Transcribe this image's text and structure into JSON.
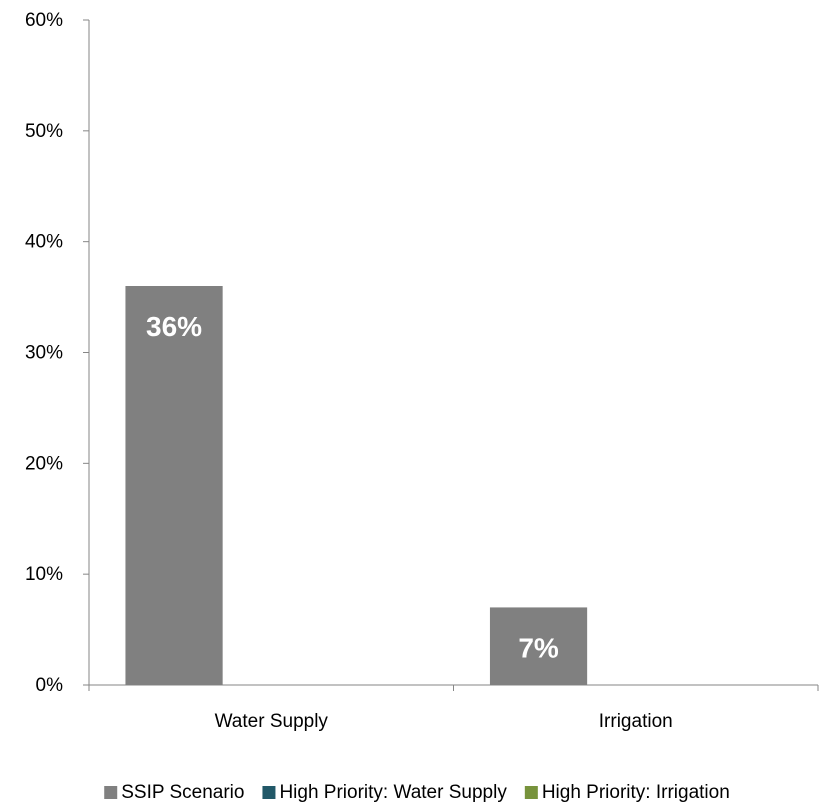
{
  "chart_data": {
    "type": "bar",
    "categories": [
      "Water Supply",
      "Irrigation"
    ],
    "series": [
      {
        "name": "SSIP Scenario",
        "values": [
          36,
          7
        ],
        "color": "#808080"
      },
      {
        "name": "High Priority: Water Supply",
        "values": [
          null,
          null
        ],
        "color": "#215868"
      },
      {
        "name": "High Priority: Irrigation",
        "values": [
          null,
          null
        ],
        "color": "#77933C"
      }
    ],
    "data_labels": [
      "36%",
      "7%"
    ],
    "y_ticks": [
      "0%",
      "10%",
      "20%",
      "30%",
      "40%",
      "50%",
      "60%"
    ],
    "ylim": [
      0,
      60
    ],
    "y_unit": "%",
    "grid": false,
    "legend_position": "bottom",
    "title": "",
    "xlabel": "",
    "ylabel": ""
  }
}
